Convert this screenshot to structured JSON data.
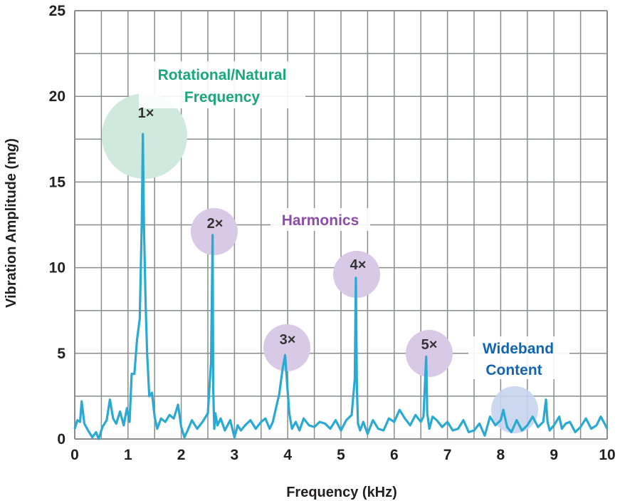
{
  "chart_data": {
    "type": "line",
    "xlabel": "Frequency (kHz)",
    "ylabel_main": "Vibration Amplitude (m",
    "ylabel_unit": "g",
    "ylabel_close": ")",
    "xlim": [
      0,
      10
    ],
    "ylim": [
      0,
      25
    ],
    "x_ticks": [
      "0",
      "1",
      "2",
      "3",
      "4",
      "5",
      "6",
      "7",
      "8",
      "9",
      "10"
    ],
    "y_ticks": [
      "0",
      "5",
      "10",
      "15",
      "20",
      "25"
    ],
    "grid": true,
    "colors": {
      "line": "#2aa9d3",
      "grid": "#8a8c8e",
      "natural": "#1aa77a",
      "natural_bubble": "#cfe9df",
      "harmonic": "#8b4da6",
      "harmonic_bubble": "#d8c9e6",
      "wideband": "#1465b0",
      "wideband_bubble": "#c7d3ee"
    },
    "series": [
      {
        "x": [
          0,
          0.05,
          0.1,
          0.13,
          0.18,
          0.25,
          0.33,
          0.4,
          0.45,
          0.52,
          0.6,
          0.66,
          0.72,
          0.78,
          0.85,
          0.92,
          0.98,
          1.03,
          1.07,
          1.12,
          1.17,
          1.22,
          1.26,
          1.28,
          1.3,
          1.33,
          1.36,
          1.4,
          1.45,
          1.5,
          1.55,
          1.62,
          1.7,
          1.78,
          1.86,
          1.94,
          2.0,
          2.06,
          2.12,
          2.2,
          2.3,
          2.4,
          2.5,
          2.56,
          2.59,
          2.6,
          2.62,
          2.64,
          2.68,
          2.74,
          2.82,
          2.92,
          3.0,
          3.06,
          3.12,
          3.2,
          3.3,
          3.4,
          3.5,
          3.58,
          3.66,
          3.72,
          3.78,
          3.84,
          3.9,
          3.95,
          3.98,
          4.03,
          4.08,
          4.15,
          4.22,
          4.3,
          4.4,
          4.5,
          4.6,
          4.7,
          4.8,
          4.9,
          5.0,
          5.1,
          5.2,
          5.26,
          5.28,
          5.3,
          5.32,
          5.36,
          5.42,
          5.5,
          5.6,
          5.7,
          5.8,
          5.9,
          6.0,
          6.1,
          6.2,
          6.3,
          6.4,
          6.5,
          6.55,
          6.6,
          6.62,
          6.66,
          6.72,
          6.8,
          6.9,
          7.0,
          7.1,
          7.2,
          7.3,
          7.4,
          7.5,
          7.6,
          7.7,
          7.8,
          7.9,
          8.0,
          8.05,
          8.12,
          8.2,
          8.3,
          8.4,
          8.5,
          8.6,
          8.7,
          8.8,
          8.85,
          8.88,
          8.92,
          9.0,
          9.1,
          9.15,
          9.22,
          9.3,
          9.4,
          9.5,
          9.6,
          9.7,
          9.8,
          9.88,
          9.95,
          10.0
        ],
        "y": [
          0.6,
          1.1,
          1.0,
          2.2,
          0.9,
          0.5,
          0.1,
          0.4,
          0.0,
          0.7,
          1.1,
          2.3,
          1.2,
          0.9,
          1.6,
          0.8,
          1.8,
          1.0,
          3.8,
          3.8,
          5.8,
          7.0,
          12.7,
          17.8,
          12.5,
          8.0,
          5.0,
          2.5,
          2.7,
          1.3,
          0.6,
          1.2,
          1.0,
          1.4,
          1.2,
          2.0,
          0.7,
          0.1,
          0.5,
          1.1,
          0.6,
          1.0,
          1.5,
          4.5,
          11.9,
          3.0,
          0.6,
          1.5,
          0.8,
          1.2,
          0.5,
          1.1,
          0.1,
          0.8,
          0.5,
          0.8,
          1.1,
          0.6,
          1.0,
          1.2,
          0.6,
          1.0,
          1.8,
          2.6,
          4.0,
          4.9,
          3.6,
          1.5,
          0.6,
          1.0,
          0.5,
          1.2,
          0.8,
          0.7,
          1.0,
          0.9,
          0.6,
          1.1,
          0.5,
          1.1,
          1.4,
          3.5,
          9.4,
          3.0,
          0.9,
          0.5,
          1.0,
          0.3,
          1.1,
          0.6,
          0.5,
          1.2,
          1.0,
          1.7,
          1.2,
          0.8,
          1.4,
          1.0,
          1.3,
          4.8,
          1.5,
          0.6,
          1.3,
          1.1,
          0.7,
          1.0,
          0.5,
          0.6,
          1.1,
          0.4,
          0.5,
          0.9,
          0.2,
          1.3,
          0.8,
          1.1,
          1.7,
          0.7,
          0.4,
          1.1,
          0.5,
          0.8,
          1.3,
          0.7,
          1.0,
          2.3,
          1.0,
          0.5,
          0.8,
          1.3,
          0.6,
          0.9,
          1.0,
          0.4,
          0.7,
          1.2,
          0.6,
          0.8,
          1.3,
          0.9,
          0.6
        ]
      }
    ],
    "annotations": {
      "natural_line1": "Rotational/Natural",
      "natural_line2": "Frequency",
      "harmonics": "Harmonics",
      "wideband_line1": "Wideband",
      "wideband_line2": "Content",
      "m1": "1×",
      "m2": "2×",
      "m3": "3×",
      "m4": "4×",
      "m5": "5×"
    }
  }
}
